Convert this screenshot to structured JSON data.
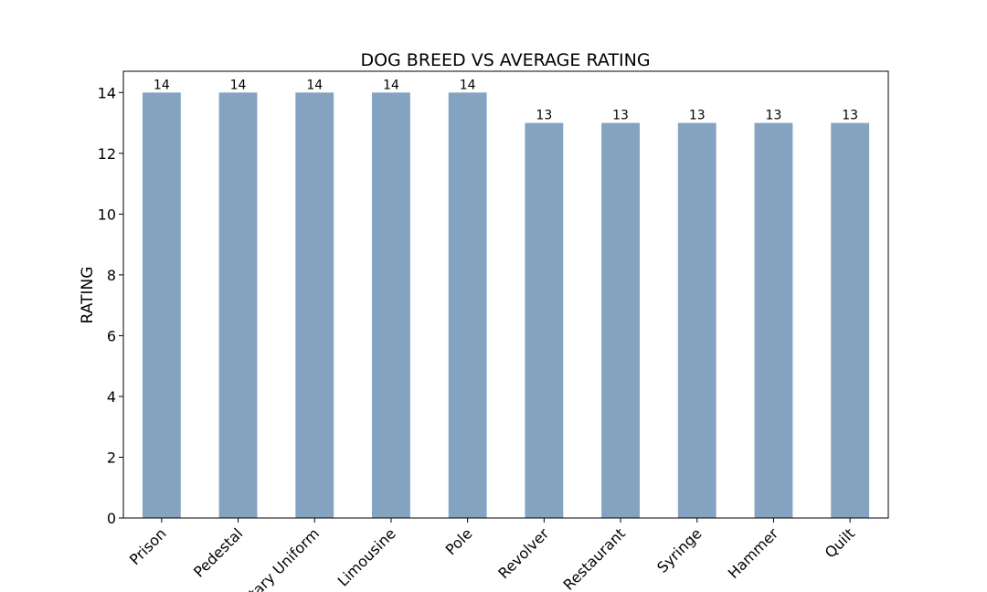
{
  "chart_data": {
    "type": "bar",
    "title": "DOG BREED VS AVERAGE RATING",
    "xlabel": "",
    "ylabel": "RATING",
    "categories": [
      "Prison",
      "Pedestal",
      "Military Uniform",
      "Limousine",
      "Pole",
      "Revolver",
      "Restaurant",
      "Syringe",
      "Hammer",
      "Quilt"
    ],
    "values": [
      14,
      14,
      14,
      14,
      14,
      13,
      13,
      13,
      13,
      13
    ],
    "data_labels": [
      "14",
      "14",
      "14",
      "14",
      "14",
      "13",
      "13",
      "13",
      "13",
      "13"
    ],
    "yticks": [
      0,
      2,
      4,
      6,
      8,
      10,
      12,
      14
    ],
    "ylim": [
      0,
      14.7
    ],
    "grid": false,
    "legend": "none",
    "bar_color": "#84a3c1"
  }
}
